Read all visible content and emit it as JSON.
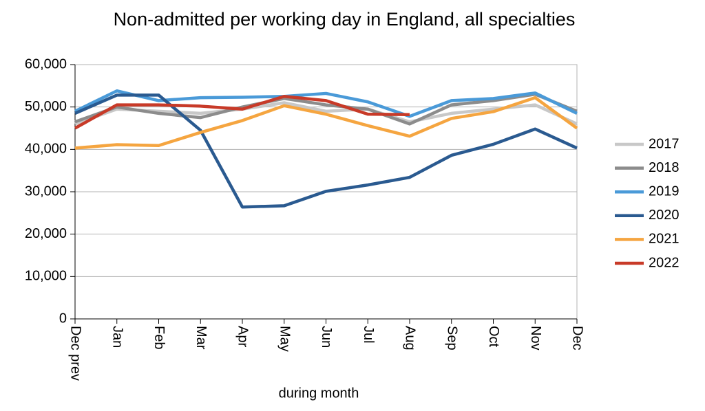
{
  "chart_data": {
    "type": "line",
    "title": "Non-admitted per working day in England, all specialties",
    "xlabel": "during  month",
    "categories": [
      "Dec prev",
      "Jan",
      "Feb",
      "Mar",
      "Apr",
      "May",
      "Jun",
      "Jul",
      "Aug",
      "Sep",
      "Oct",
      "Nov",
      "Dec"
    ],
    "series": [
      {
        "name": "2017",
        "color": "#c8c8c8",
        "values": [
          46000,
          49500,
          49000,
          48500,
          49500,
          51000,
          49000,
          49500,
          46500,
          48500,
          49500,
          50500,
          46000
        ]
      },
      {
        "name": "2018",
        "color": "#8c8c8c",
        "values": [
          46500,
          50000,
          48500,
          47500,
          50000,
          52000,
          50500,
          49500,
          46000,
          50500,
          51500,
          53000,
          49000
        ]
      },
      {
        "name": "2019",
        "color": "#4a9ad8",
        "values": [
          49000,
          53800,
          51500,
          52200,
          52300,
          52500,
          53200,
          51200,
          47800,
          51500,
          52000,
          53300,
          48500
        ]
      },
      {
        "name": "2020",
        "color": "#2a5a90",
        "values": [
          48500,
          52800,
          52800,
          44500,
          26400,
          26700,
          30100,
          31600,
          33400,
          38600,
          41200,
          44800,
          40300
        ]
      },
      {
        "name": "2021",
        "color": "#f5a540",
        "values": [
          40300,
          41100,
          40900,
          44000,
          46800,
          50300,
          48300,
          45600,
          43100,
          47300,
          48900,
          52200,
          45000
        ]
      },
      {
        "name": "2022",
        "color": "#c83a28",
        "values": [
          45000,
          50500,
          50500,
          50200,
          49500,
          52500,
          51500,
          48300,
          48200,
          null,
          null,
          null,
          null
        ]
      }
    ],
    "ylim": [
      0,
      60000
    ],
    "yticks": [
      0,
      {
        "value": 10000,
        "label": "10,000"
      },
      {
        "value": 20000,
        "label": "20,000"
      },
      {
        "value": 30000,
        "label": "30,000"
      },
      {
        "value": 40000,
        "label": "40,000"
      },
      {
        "value": 50000,
        "label": "50,000"
      },
      {
        "value": 60000,
        "label": "60,000"
      }
    ],
    "grid": true,
    "legend": "right"
  }
}
